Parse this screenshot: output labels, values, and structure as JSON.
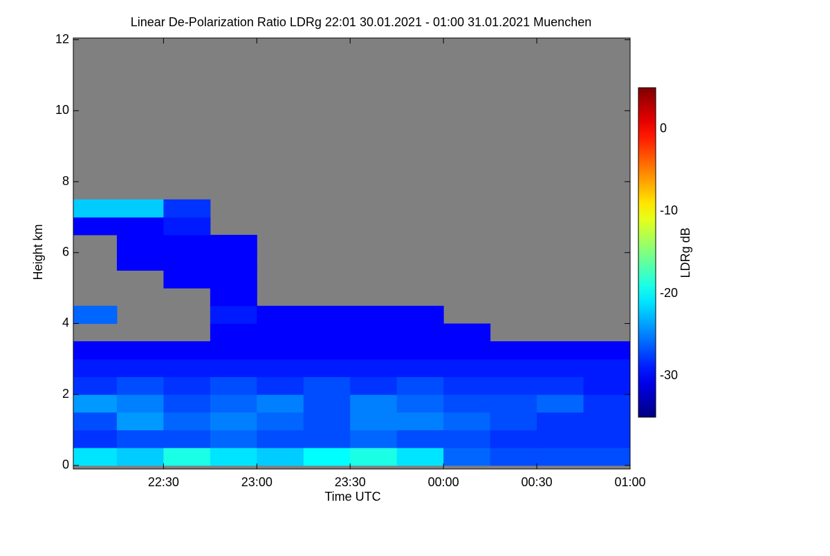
{
  "chart_data": {
    "type": "heatmap",
    "title": "Linear De-Polarization Ratio LDRg   22:01 30.01.2021 - 01:00 31.01.2021 Muenchen",
    "xlabel": "Time UTC",
    "ylabel": "Height km",
    "missing_color": "#808080",
    "x": [
      22.125,
      22.375,
      22.625,
      22.875,
      23.125,
      23.375,
      23.625,
      23.875,
      24.125,
      24.375,
      24.625,
      24.875
    ],
    "y": [
      0.25,
      0.75,
      1.25,
      1.75,
      2.25,
      2.75,
      3.25,
      3.75,
      4.25,
      4.75,
      5.25,
      5.75,
      6.25,
      6.75,
      7.25,
      7.75
    ],
    "z": [
      [
        -21,
        -22,
        -19,
        -21,
        -22,
        -20,
        -19,
        -21,
        -26,
        -27,
        -27,
        -27
      ],
      [
        -28,
        -27,
        -27,
        -26,
        -27,
        -27,
        -26,
        -27,
        -27,
        -28,
        -28,
        -28
      ],
      [
        -27,
        -24,
        -26,
        -25,
        -26,
        -27,
        -25,
        -25,
        -26,
        -27,
        -28,
        -28
      ],
      [
        -24,
        -25,
        -27,
        -26,
        -25,
        -27,
        -25,
        -26,
        -27,
        -27,
        -26,
        -28
      ],
      [
        -28,
        -27,
        -28,
        -27,
        -28,
        -27,
        -28,
        -27,
        -28,
        -28,
        -28,
        -29
      ],
      [
        -29,
        -29,
        -29,
        -29,
        -29,
        -29,
        -29,
        -29,
        -29,
        -29,
        -29,
        -29
      ],
      [
        -30,
        -30,
        -30,
        -30,
        -30,
        -30,
        -30,
        -30,
        -30,
        -30,
        -30,
        -30
      ],
      [
        null,
        null,
        null,
        -30,
        -30,
        -30,
        -30,
        -30,
        -30,
        null,
        null,
        null
      ],
      [
        -26,
        null,
        null,
        -29,
        -30,
        -30,
        -30,
        -30,
        null,
        null,
        null,
        null
      ],
      [
        null,
        null,
        null,
        -30,
        null,
        null,
        null,
        null,
        null,
        null,
        null,
        null
      ],
      [
        null,
        null,
        -30,
        -30,
        null,
        null,
        null,
        null,
        null,
        null,
        null,
        null
      ],
      [
        null,
        -30,
        -30,
        -30,
        null,
        null,
        null,
        null,
        null,
        null,
        null,
        null
      ],
      [
        null,
        -30,
        -30,
        -30,
        null,
        null,
        null,
        null,
        null,
        null,
        null,
        null
      ],
      [
        -30,
        -30,
        -29,
        null,
        null,
        null,
        null,
        null,
        null,
        null,
        null,
        null
      ],
      [
        -22,
        -22,
        -28,
        null,
        null,
        null,
        null,
        null,
        null,
        null,
        null,
        null
      ],
      [
        null,
        null,
        null,
        null,
        null,
        null,
        null,
        null,
        null,
        null,
        null,
        null
      ]
    ],
    "xlim": [
      22.0167,
      25.0
    ],
    "xticks": [
      {
        "value": 22.5,
        "label": "22:30"
      },
      {
        "value": 23.0,
        "label": "23:00"
      },
      {
        "value": 23.5,
        "label": "23:30"
      },
      {
        "value": 24.0,
        "label": "00:00"
      },
      {
        "value": 24.5,
        "label": "00:30"
      },
      {
        "value": 25.0,
        "label": "01:00"
      }
    ],
    "ylim": [
      -0.1,
      12.05
    ],
    "yticks": [
      0,
      2,
      4,
      6,
      8,
      10,
      12
    ],
    "colorbar": {
      "label": "LDRg dB",
      "lim": [
        -35,
        5
      ],
      "ticks": [
        0,
        -10,
        -20,
        -30
      ],
      "colormap": "jet"
    }
  }
}
